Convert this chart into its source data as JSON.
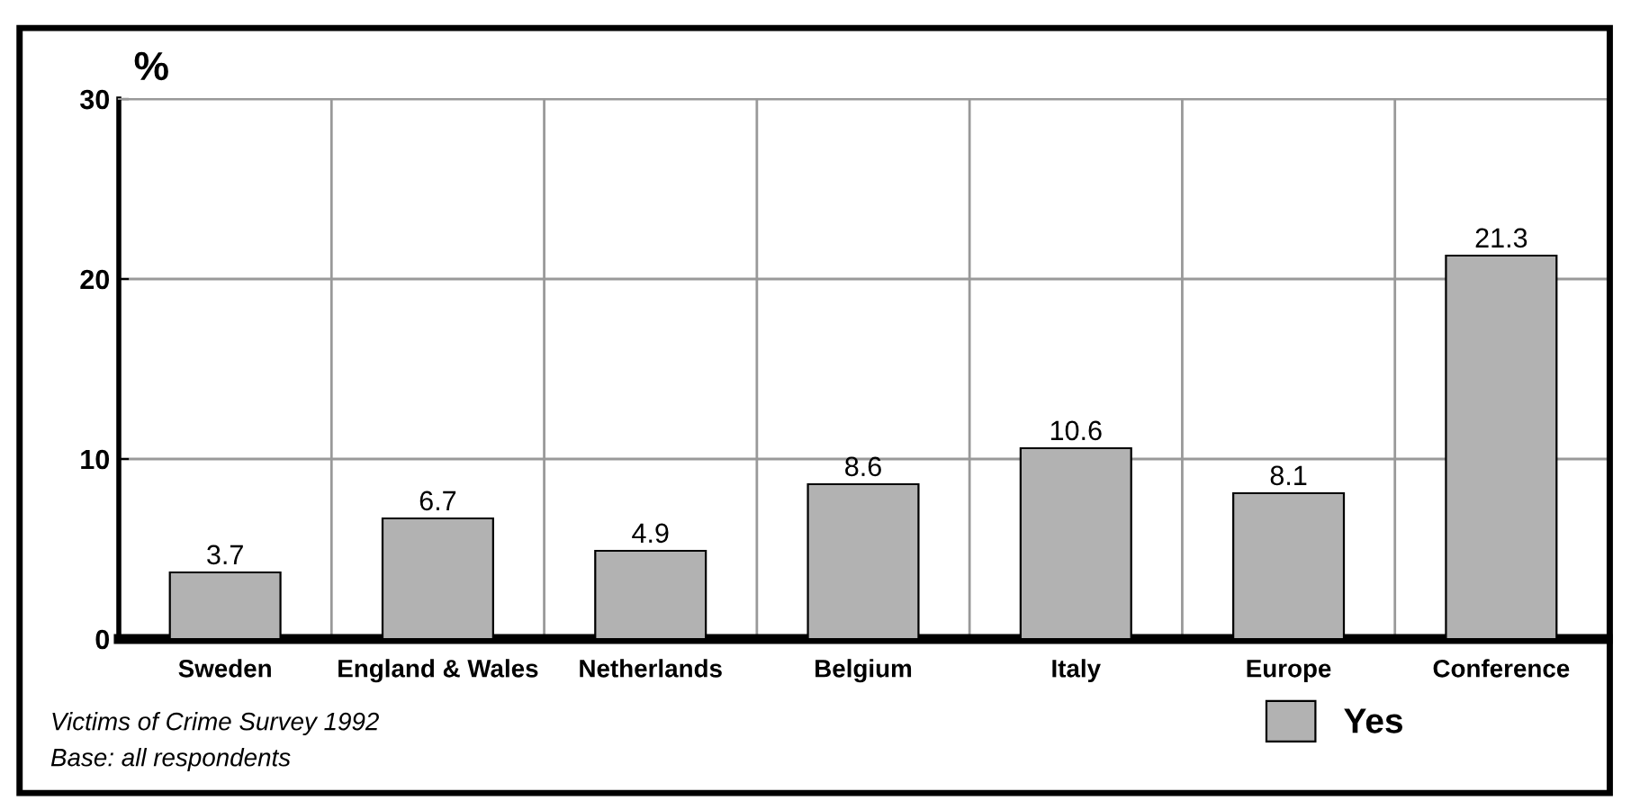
{
  "chart_data": {
    "type": "bar",
    "ylabel": "%",
    "categories": [
      "Sweden",
      "England & Wales",
      "Netherlands",
      "Belgium",
      "Italy",
      "Europe",
      "Conference"
    ],
    "series": [
      {
        "name": "Yes",
        "color": "#b2b2b2",
        "values": [
          3.7,
          6.7,
          4.9,
          8.6,
          10.6,
          8.1,
          21.3
        ]
      }
    ],
    "ylim": [
      0,
      30
    ],
    "yticks": [
      0,
      10,
      20,
      30
    ],
    "grid": true,
    "legend": "bottom right",
    "data_labels": true,
    "annotations": [
      "Victims of Crime Survey 1992",
      "Base: all respondents"
    ]
  }
}
